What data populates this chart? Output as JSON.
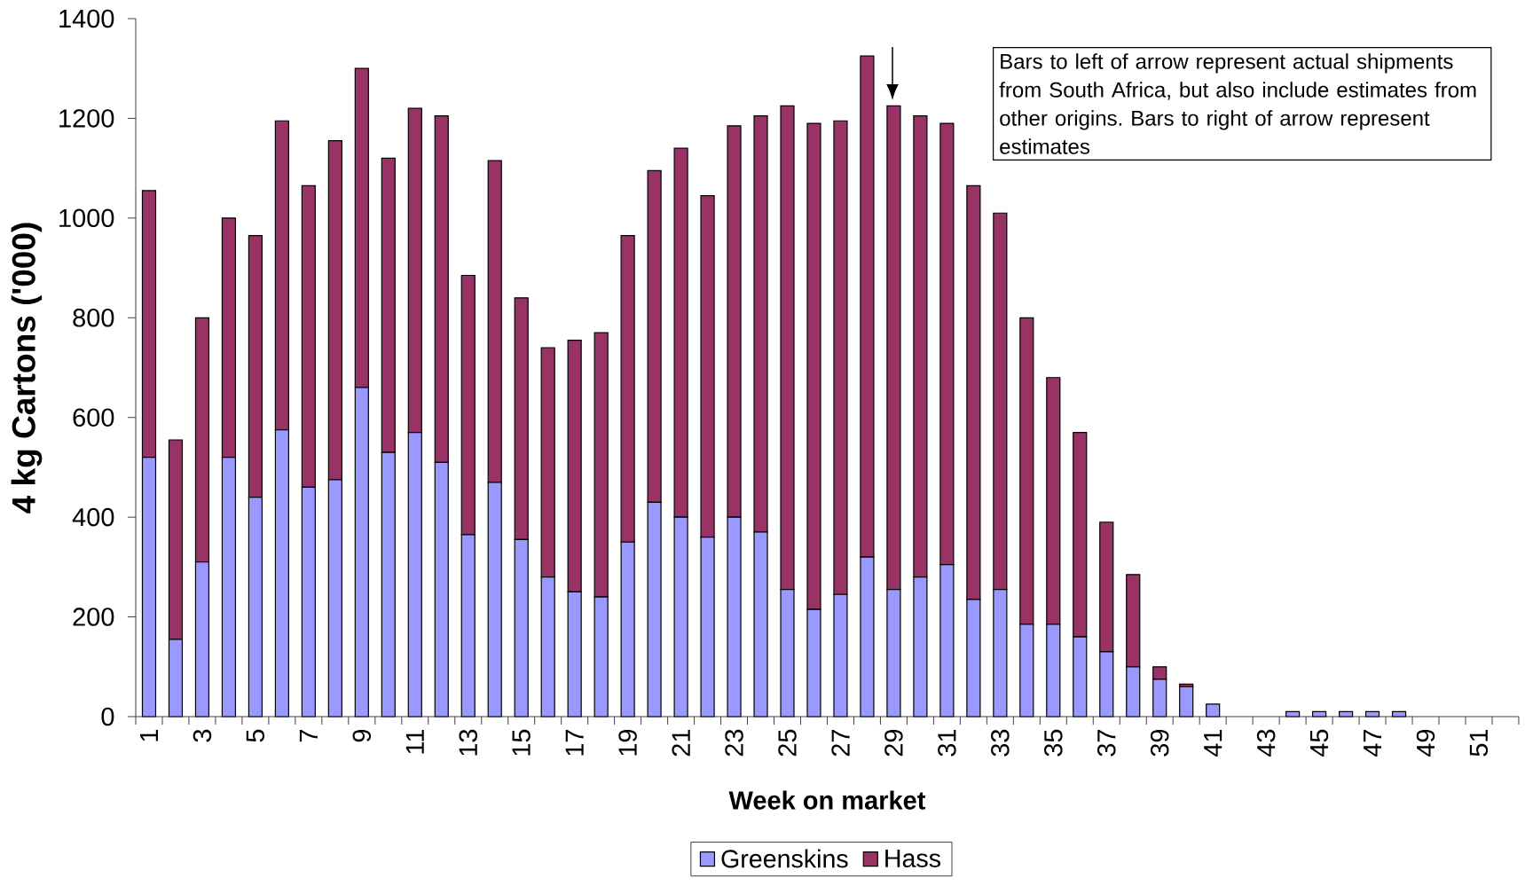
{
  "chart_data": {
    "type": "bar",
    "stacked": true,
    "xlabel": "Week on market",
    "ylabel": "4 kg Cartons ('000)",
    "categories": [
      "1",
      null,
      "3",
      null,
      "5",
      null,
      "7",
      null,
      "9",
      null,
      "11",
      null,
      "13",
      null,
      "15",
      null,
      "17",
      null,
      "19",
      null,
      "21",
      null,
      "23",
      null,
      "25",
      null,
      "27",
      null,
      "29",
      null,
      "31",
      null,
      "33",
      null,
      "35",
      null,
      "37",
      null,
      "39",
      null,
      "41",
      null,
      "43",
      null,
      "45",
      null,
      "47",
      null,
      "49",
      null,
      "51",
      null
    ],
    "series": [
      {
        "name": "Greenskins",
        "color": "#9999ff",
        "values": [
          520,
          155,
          310,
          520,
          440,
          575,
          460,
          475,
          660,
          530,
          570,
          510,
          365,
          470,
          355,
          280,
          250,
          240,
          350,
          430,
          400,
          360,
          400,
          370,
          255,
          215,
          245,
          320,
          255,
          280,
          305,
          235,
          255,
          185,
          185,
          160,
          130,
          100,
          75,
          60,
          25,
          0,
          0,
          10,
          10,
          10,
          10,
          10,
          0,
          0,
          0,
          0
        ]
      },
      {
        "name": "Hass",
        "color": "#993366",
        "values": [
          535,
          400,
          490,
          480,
          525,
          620,
          605,
          680,
          640,
          590,
          650,
          695,
          520,
          645,
          485,
          460,
          505,
          530,
          615,
          665,
          740,
          685,
          785,
          835,
          970,
          975,
          950,
          1005,
          970,
          925,
          885,
          830,
          755,
          615,
          495,
          410,
          260,
          185,
          25,
          5,
          0,
          0,
          0,
          0,
          0,
          0,
          0,
          0,
          0,
          0,
          0,
          0
        ]
      }
    ],
    "ylim": [
      0,
      1400
    ],
    "yticks": [
      0,
      200,
      400,
      600,
      800,
      1000,
      1200,
      1400
    ],
    "legend": "bottom",
    "annotations": [
      "Bars to left of arrow represent actual shipments from South Africa, but also include estimates from other origins. Bars to right of arrow represent estimates"
    ]
  }
}
